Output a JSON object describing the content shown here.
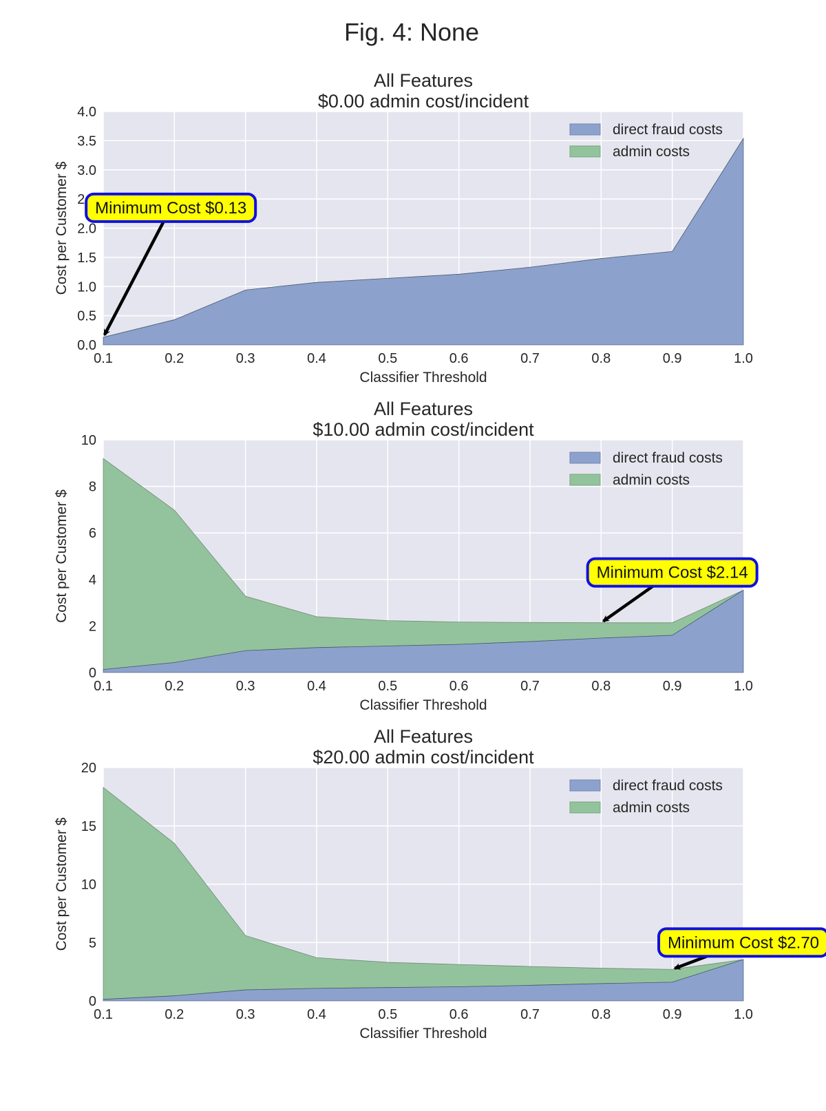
{
  "figure": {
    "suptitle": "Fig. 4: None",
    "background": "#ffffff",
    "axes_background": "#e5e5ef",
    "grid_color": "#ffffff",
    "colors": {
      "direct": "#8ca2cc",
      "admin": "#93c39c",
      "annotation_fill": "#ffff00",
      "annotation_border": "#1010e0",
      "arrow": "#000000"
    }
  },
  "chart_data": [
    {
      "type": "area",
      "stacked": true,
      "title": [
        "All Features",
        "$0.00 admin cost/incident"
      ],
      "xlabel": "Classifier Threshold",
      "ylabel": "Cost per Customer $",
      "xlim": [
        0.1,
        1.0
      ],
      "ylim": [
        0,
        4.0
      ],
      "xticks": [
        "0.1",
        "0.2",
        "0.3",
        "0.4",
        "0.5",
        "0.6",
        "0.7",
        "0.8",
        "0.9",
        "1.0"
      ],
      "yticks": [
        "0.0",
        "0.5",
        "1.0",
        "1.5",
        "2.0",
        "2.5",
        "3.0",
        "3.5",
        "4.0"
      ],
      "grid": true,
      "legend_position": "top-right",
      "x": [
        0.1,
        0.2,
        0.3,
        0.4,
        0.5,
        0.6,
        0.7,
        0.8,
        0.9,
        1.0
      ],
      "series": [
        {
          "name": "direct fraud costs",
          "values": [
            0.13,
            0.43,
            0.94,
            1.07,
            1.14,
            1.21,
            1.33,
            1.48,
            1.6,
            3.54
          ]
        },
        {
          "name": "admin costs",
          "values": [
            0,
            0,
            0,
            0,
            0,
            0,
            0,
            0,
            0,
            0
          ]
        }
      ],
      "annotation": {
        "text": "Minimum Cost $0.13",
        "x": 0.1,
        "y": 0.13,
        "text_x": 0.195,
        "text_y": 2.35
      }
    },
    {
      "type": "area",
      "stacked": true,
      "title": [
        "All Features",
        "$10.00 admin cost/incident"
      ],
      "xlabel": "Classifier Threshold",
      "ylabel": "Cost per Customer $",
      "xlim": [
        0.1,
        1.0
      ],
      "ylim": [
        0,
        10
      ],
      "xticks": [
        "0.1",
        "0.2",
        "0.3",
        "0.4",
        "0.5",
        "0.6",
        "0.7",
        "0.8",
        "0.9",
        "1.0"
      ],
      "yticks": [
        "0",
        "2",
        "4",
        "6",
        "8",
        "10"
      ],
      "grid": true,
      "legend_position": "top-right",
      "x": [
        0.1,
        0.2,
        0.3,
        0.4,
        0.5,
        0.6,
        0.7,
        0.8,
        0.9,
        1.0
      ],
      "series": [
        {
          "name": "direct fraud costs",
          "values": [
            0.13,
            0.43,
            0.94,
            1.07,
            1.14,
            1.21,
            1.33,
            1.48,
            1.6,
            3.54
          ]
        },
        {
          "name": "admin costs",
          "values": [
            9.07,
            6.55,
            2.34,
            1.33,
            1.09,
            0.96,
            0.82,
            0.66,
            0.54,
            0.0
          ]
        }
      ],
      "annotation": {
        "text": "Minimum Cost $2.14",
        "x": 0.8,
        "y": 2.14,
        "text_x": 0.9,
        "text_y": 4.3
      }
    },
    {
      "type": "area",
      "stacked": true,
      "title": [
        "All Features",
        "$20.00 admin cost/incident"
      ],
      "xlabel": "Classifier Threshold",
      "ylabel": "Cost per Customer $",
      "xlim": [
        0.1,
        1.0
      ],
      "ylim": [
        0,
        20
      ],
      "xticks": [
        "0.1",
        "0.2",
        "0.3",
        "0.4",
        "0.5",
        "0.6",
        "0.7",
        "0.8",
        "0.9",
        "1.0"
      ],
      "yticks": [
        "0",
        "5",
        "10",
        "15",
        "20"
      ],
      "grid": true,
      "legend_position": "top-right",
      "x": [
        0.1,
        0.2,
        0.3,
        0.4,
        0.5,
        0.6,
        0.7,
        0.8,
        0.9,
        1.0
      ],
      "series": [
        {
          "name": "direct fraud costs",
          "values": [
            0.13,
            0.43,
            0.94,
            1.07,
            1.14,
            1.21,
            1.33,
            1.48,
            1.6,
            3.54
          ]
        },
        {
          "name": "admin costs",
          "values": [
            18.17,
            13.07,
            4.66,
            2.63,
            2.16,
            1.91,
            1.62,
            1.32,
            1.1,
            0.0
          ]
        }
      ],
      "annotation": {
        "text": "Minimum Cost $2.70",
        "x": 0.9,
        "y": 2.7,
        "text_x": 1.0,
        "text_y": 5.0
      }
    }
  ]
}
